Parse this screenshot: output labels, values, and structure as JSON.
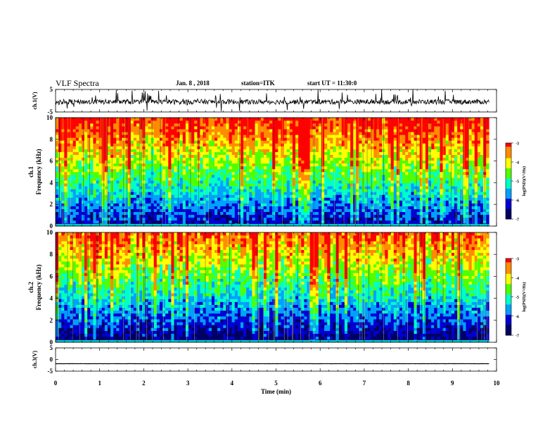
{
  "header": {
    "title": "VLF Spectra",
    "date": "Jan. 8 , 2018",
    "station": "station=ITK",
    "start_ut": "start UT = 11:30:0"
  },
  "colors": {
    "background": "#ffffff",
    "axis": "#000000",
    "colormap": [
      "#000064",
      "#0000d2",
      "#00a0ff",
      "#00ffc8",
      "#50ff00",
      "#ffff00",
      "#ff8c00",
      "#ff0000",
      "#ffffff"
    ]
  },
  "chart_data": [
    {
      "type": "line",
      "panel": "ch1-waveform",
      "ylabel": "ch.1(V)",
      "xlabel": "",
      "xlim": [
        0,
        10
      ],
      "ylim": [
        -5,
        5
      ],
      "yticks": [
        5,
        -5
      ],
      "data_extent_x": [
        0,
        9.83
      ],
      "series": [
        {
          "mean": -0.5,
          "noise": 2.2
        }
      ]
    },
    {
      "type": "heatmap",
      "panel": "ch1-spectrogram",
      "ylabel_top": "ch.1",
      "ylabel": "Frequency (kHz)",
      "xlim": [
        0,
        10
      ],
      "ylim": [
        0,
        10
      ],
      "yticks": [
        0,
        2,
        4,
        6,
        8,
        10
      ],
      "data_extent_x": [
        0,
        9.83
      ],
      "colorbar": {
        "label": "log(PSD)(V²/Hz)",
        "range": [
          -7,
          -3
        ],
        "ticks": [
          "-3",
          "-4",
          "-5",
          "-6",
          "-7"
        ]
      }
    },
    {
      "type": "heatmap",
      "panel": "ch2-spectrogram",
      "ylabel_top": "ch.2",
      "ylabel": "Frequency (kHz)",
      "xlim": [
        0,
        10
      ],
      "ylim": [
        0,
        10
      ],
      "yticks": [
        0,
        2,
        4,
        6,
        8,
        10
      ],
      "data_extent_x": [
        0,
        9.83
      ],
      "colorbar": {
        "label": "log(PSD)(V²/Hz)",
        "range": [
          -7,
          -3
        ],
        "ticks": [
          "-3",
          "-4",
          "-5",
          "-6",
          "-7"
        ]
      }
    },
    {
      "type": "line",
      "panel": "ch3-waveform",
      "ylabel": "ch.3(V)",
      "xlabel": "Time (min)",
      "xlim": [
        0,
        10
      ],
      "ylim": [
        -5,
        5
      ],
      "yticks": [
        5,
        0,
        -5
      ],
      "xticks": [
        "0",
        "1",
        "2",
        "3",
        "4",
        "5",
        "6",
        "7",
        "8",
        "9",
        "10"
      ],
      "data_extent_x": [
        0,
        9.83
      ],
      "series": [
        {
          "mean": -1.8,
          "noise": 0.05
        }
      ]
    }
  ]
}
